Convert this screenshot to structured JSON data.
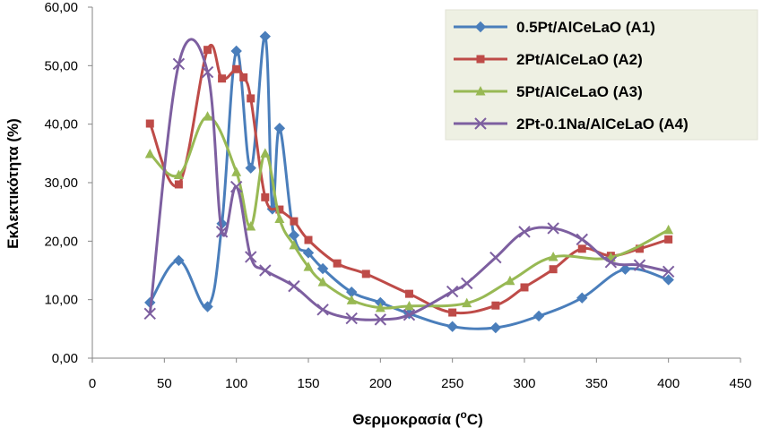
{
  "chart_data": {
    "type": "line",
    "xlabel": "Θερμοκρασία (°C)",
    "xlabel_main": "Θερμοκρασία (",
    "xlabel_sup": "o",
    "xlabel_unit": "C)",
    "ylabel": "Εκλεκτικότητα (%)",
    "xlim": [
      0,
      450
    ],
    "ylim": [
      0,
      60
    ],
    "x_ticks": [
      "0",
      "50",
      "100",
      "150",
      "200",
      "250",
      "300",
      "350",
      "400",
      "450"
    ],
    "y_ticks": [
      "0,00",
      "10,00",
      "20,00",
      "30,00",
      "40,00",
      "50,00",
      "60,00"
    ],
    "grid": false,
    "legend_position": "top-right",
    "legend_background": "#eef0e3",
    "series": [
      {
        "name": "0.5Pt/AlCeLaO (A1)",
        "color": "#4a7ebb",
        "marker": "diamond",
        "points": [
          [
            40,
            9.5
          ],
          [
            60,
            16.7
          ],
          [
            80,
            8.8
          ],
          [
            90,
            23.0
          ],
          [
            100,
            52.5
          ],
          [
            110,
            32.5
          ],
          [
            120,
            55.0
          ],
          [
            125,
            25.5
          ],
          [
            130,
            39.3
          ],
          [
            140,
            21.0
          ],
          [
            150,
            18.0
          ],
          [
            160,
            15.3
          ],
          [
            180,
            11.3
          ],
          [
            200,
            9.5
          ],
          [
            220,
            7.6
          ],
          [
            250,
            5.4
          ],
          [
            280,
            5.2
          ],
          [
            310,
            7.2
          ],
          [
            340,
            10.3
          ],
          [
            370,
            15.2
          ],
          [
            400,
            13.4
          ]
        ]
      },
      {
        "name": "2Pt/AlCeLaO (A2)",
        "color": "#be4b48",
        "marker": "square",
        "points": [
          [
            40,
            40.1
          ],
          [
            60,
            29.7
          ],
          [
            80,
            52.7
          ],
          [
            90,
            47.8
          ],
          [
            100,
            49.4
          ],
          [
            105,
            48.0
          ],
          [
            110,
            44.4
          ],
          [
            120,
            27.5
          ],
          [
            130,
            25.4
          ],
          [
            140,
            23.4
          ],
          [
            150,
            20.2
          ],
          [
            170,
            16.2
          ],
          [
            190,
            14.4
          ],
          [
            220,
            11.0
          ],
          [
            250,
            7.8
          ],
          [
            280,
            9.0
          ],
          [
            300,
            12.1
          ],
          [
            320,
            15.2
          ],
          [
            340,
            18.7
          ],
          [
            360,
            17.5
          ],
          [
            380,
            18.7
          ],
          [
            400,
            20.3
          ]
        ]
      },
      {
        "name": "5Pt/AlCeLaO (A3)",
        "color": "#98b954",
        "marker": "triangle",
        "points": [
          [
            40,
            34.9
          ],
          [
            60,
            31.3
          ],
          [
            80,
            41.3
          ],
          [
            100,
            31.8
          ],
          [
            110,
            22.5
          ],
          [
            120,
            35.0
          ],
          [
            130,
            23.8
          ],
          [
            140,
            19.3
          ],
          [
            150,
            15.6
          ],
          [
            160,
            13.0
          ],
          [
            180,
            9.9
          ],
          [
            200,
            8.6
          ],
          [
            220,
            8.9
          ],
          [
            260,
            9.4
          ],
          [
            290,
            13.2
          ],
          [
            320,
            17.3
          ],
          [
            360,
            17.2
          ],
          [
            400,
            21.9
          ]
        ]
      },
      {
        "name": "2Pt-0.1Na/AlCeLaO (A4)",
        "color": "#7d5fa0",
        "marker": "x",
        "points": [
          [
            40,
            7.6
          ],
          [
            60,
            50.3
          ],
          [
            80,
            48.9
          ],
          [
            90,
            21.6
          ],
          [
            100,
            29.3
          ],
          [
            110,
            17.3
          ],
          [
            120,
            15.0
          ],
          [
            140,
            12.3
          ],
          [
            160,
            8.3
          ],
          [
            180,
            6.8
          ],
          [
            200,
            6.6
          ],
          [
            220,
            7.4
          ],
          [
            250,
            11.4
          ],
          [
            260,
            12.8
          ],
          [
            280,
            17.2
          ],
          [
            300,
            21.6
          ],
          [
            320,
            22.2
          ],
          [
            340,
            20.3
          ],
          [
            360,
            16.4
          ],
          [
            380,
            15.9
          ],
          [
            400,
            14.8
          ]
        ]
      }
    ]
  }
}
